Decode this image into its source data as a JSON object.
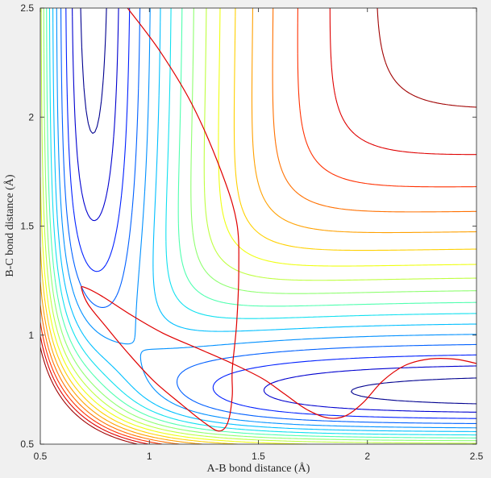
{
  "chart_data": {
    "type": "contour",
    "title": "",
    "xlabel": "A-B bond distance (Å)",
    "ylabel": "B-C bond distance (Å)",
    "xlim": [
      0.5,
      2.5
    ],
    "ylim": [
      0.5,
      2.5
    ],
    "xticks": [
      "0.5",
      "1",
      "1.5",
      "2",
      "2.5"
    ],
    "yticks": [
      "0.5",
      "1",
      "1.5",
      "2",
      "2.5"
    ],
    "grid": false,
    "legend": "none",
    "colormap": "jet",
    "contour_levels": [
      {
        "level": 1,
        "color": "#00008f"
      },
      {
        "level": 2,
        "color": "#0000cf"
      },
      {
        "level": 3,
        "color": "#0020ff"
      },
      {
        "level": 4,
        "color": "#0060ff"
      },
      {
        "level": 5,
        "color": "#0090ff"
      },
      {
        "level": 6,
        "color": "#00bfff"
      },
      {
        "level": 7,
        "color": "#10e0ef"
      },
      {
        "level": 8,
        "color": "#50ffaf"
      },
      {
        "level": 9,
        "color": "#8fff70"
      },
      {
        "level": 10,
        "color": "#bfff40"
      },
      {
        "level": 11,
        "color": "#efff10"
      },
      {
        "level": 12,
        "color": "#ffd000"
      },
      {
        "level": 13,
        "color": "#ffa000"
      },
      {
        "level": 14,
        "color": "#ff7000"
      },
      {
        "level": 15,
        "color": "#ff3000"
      },
      {
        "level": 16,
        "color": "#df0000"
      },
      {
        "level": 17,
        "color": "#a00000"
      }
    ],
    "trajectory": {
      "color": "#e00000",
      "points": [
        [
          0.9,
          2.5
        ],
        [
          1.05,
          2.3
        ],
        [
          1.2,
          2.05
        ],
        [
          1.33,
          1.75
        ],
        [
          1.4,
          1.52
        ],
        [
          1.41,
          1.3
        ],
        [
          1.4,
          1.05
        ],
        [
          1.38,
          0.84
        ],
        [
          1.38,
          0.72
        ],
        [
          1.36,
          0.6
        ],
        [
          1.32,
          0.56
        ],
        [
          1.25,
          0.6
        ],
        [
          1.15,
          0.68
        ],
        [
          1.02,
          0.79
        ],
        [
          0.9,
          0.92
        ],
        [
          0.8,
          1.04
        ],
        [
          0.72,
          1.14
        ],
        [
          0.69,
          1.21
        ],
        [
          0.7,
          1.22
        ],
        [
          0.78,
          1.18
        ],
        [
          0.92,
          1.09
        ],
        [
          1.06,
          1.01
        ],
        [
          1.22,
          0.94
        ],
        [
          1.38,
          0.87
        ],
        [
          1.52,
          0.8
        ],
        [
          1.62,
          0.73
        ],
        [
          1.72,
          0.66
        ],
        [
          1.82,
          0.62
        ],
        [
          1.9,
          0.63
        ],
        [
          1.98,
          0.69
        ],
        [
          2.07,
          0.79
        ],
        [
          2.17,
          0.86
        ],
        [
          2.28,
          0.89
        ],
        [
          2.4,
          0.89
        ],
        [
          2.5,
          0.87
        ]
      ]
    }
  }
}
